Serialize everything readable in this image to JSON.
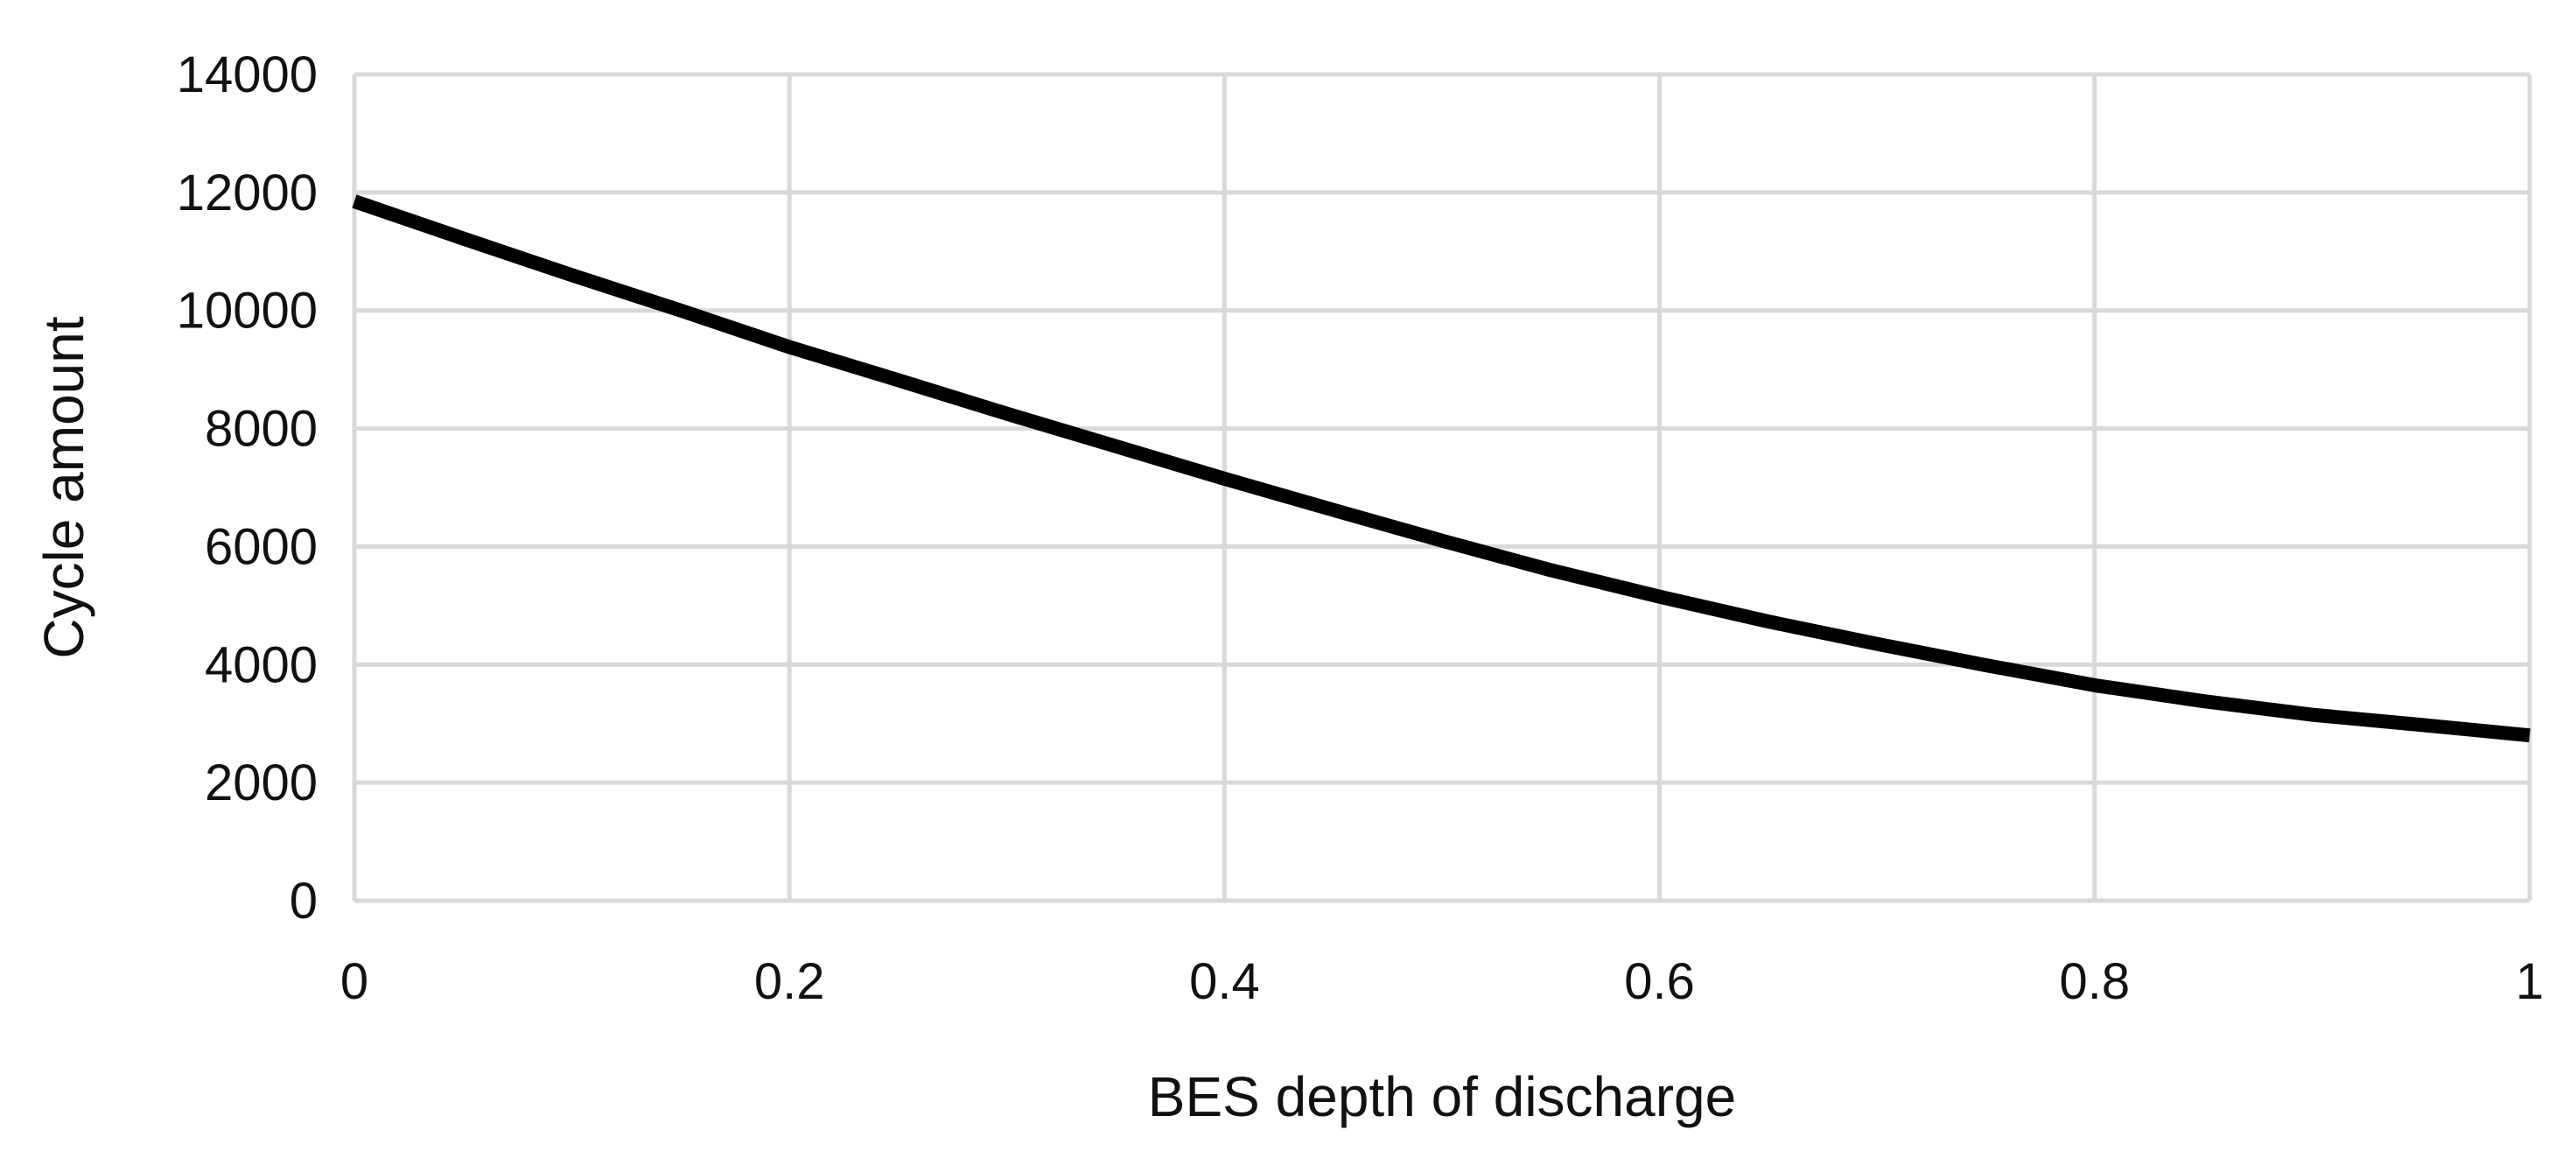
{
  "chart_data": {
    "type": "line",
    "title": "",
    "xlabel": "BES depth of discharge",
    "ylabel": "Cycle amount",
    "xlim": [
      0,
      1
    ],
    "ylim": [
      0,
      14000
    ],
    "x_ticks": [
      "0",
      "0.2",
      "0.4",
      "0.6",
      "0.8",
      "1"
    ],
    "y_ticks": [
      "0",
      "2000",
      "4000",
      "6000",
      "8000",
      "10000",
      "12000",
      "14000"
    ],
    "grid": true,
    "legend": "none",
    "colors": {
      "line": "#000000",
      "grid": "#d9d9d9",
      "text": "#111111"
    },
    "series": [
      {
        "x": [
          0,
          0.05,
          0.1,
          0.15,
          0.2,
          0.25,
          0.3,
          0.35,
          0.4,
          0.45,
          0.5,
          0.55,
          0.6,
          0.65,
          0.7,
          0.75,
          0.8,
          0.85,
          0.9,
          0.95,
          1
        ],
        "y": [
          11850,
          11220,
          10600,
          10000,
          9380,
          8820,
          8250,
          7700,
          7150,
          6620,
          6100,
          5600,
          5150,
          4730,
          4350,
          3990,
          3650,
          3380,
          3150,
          2980,
          2800
        ]
      }
    ]
  }
}
